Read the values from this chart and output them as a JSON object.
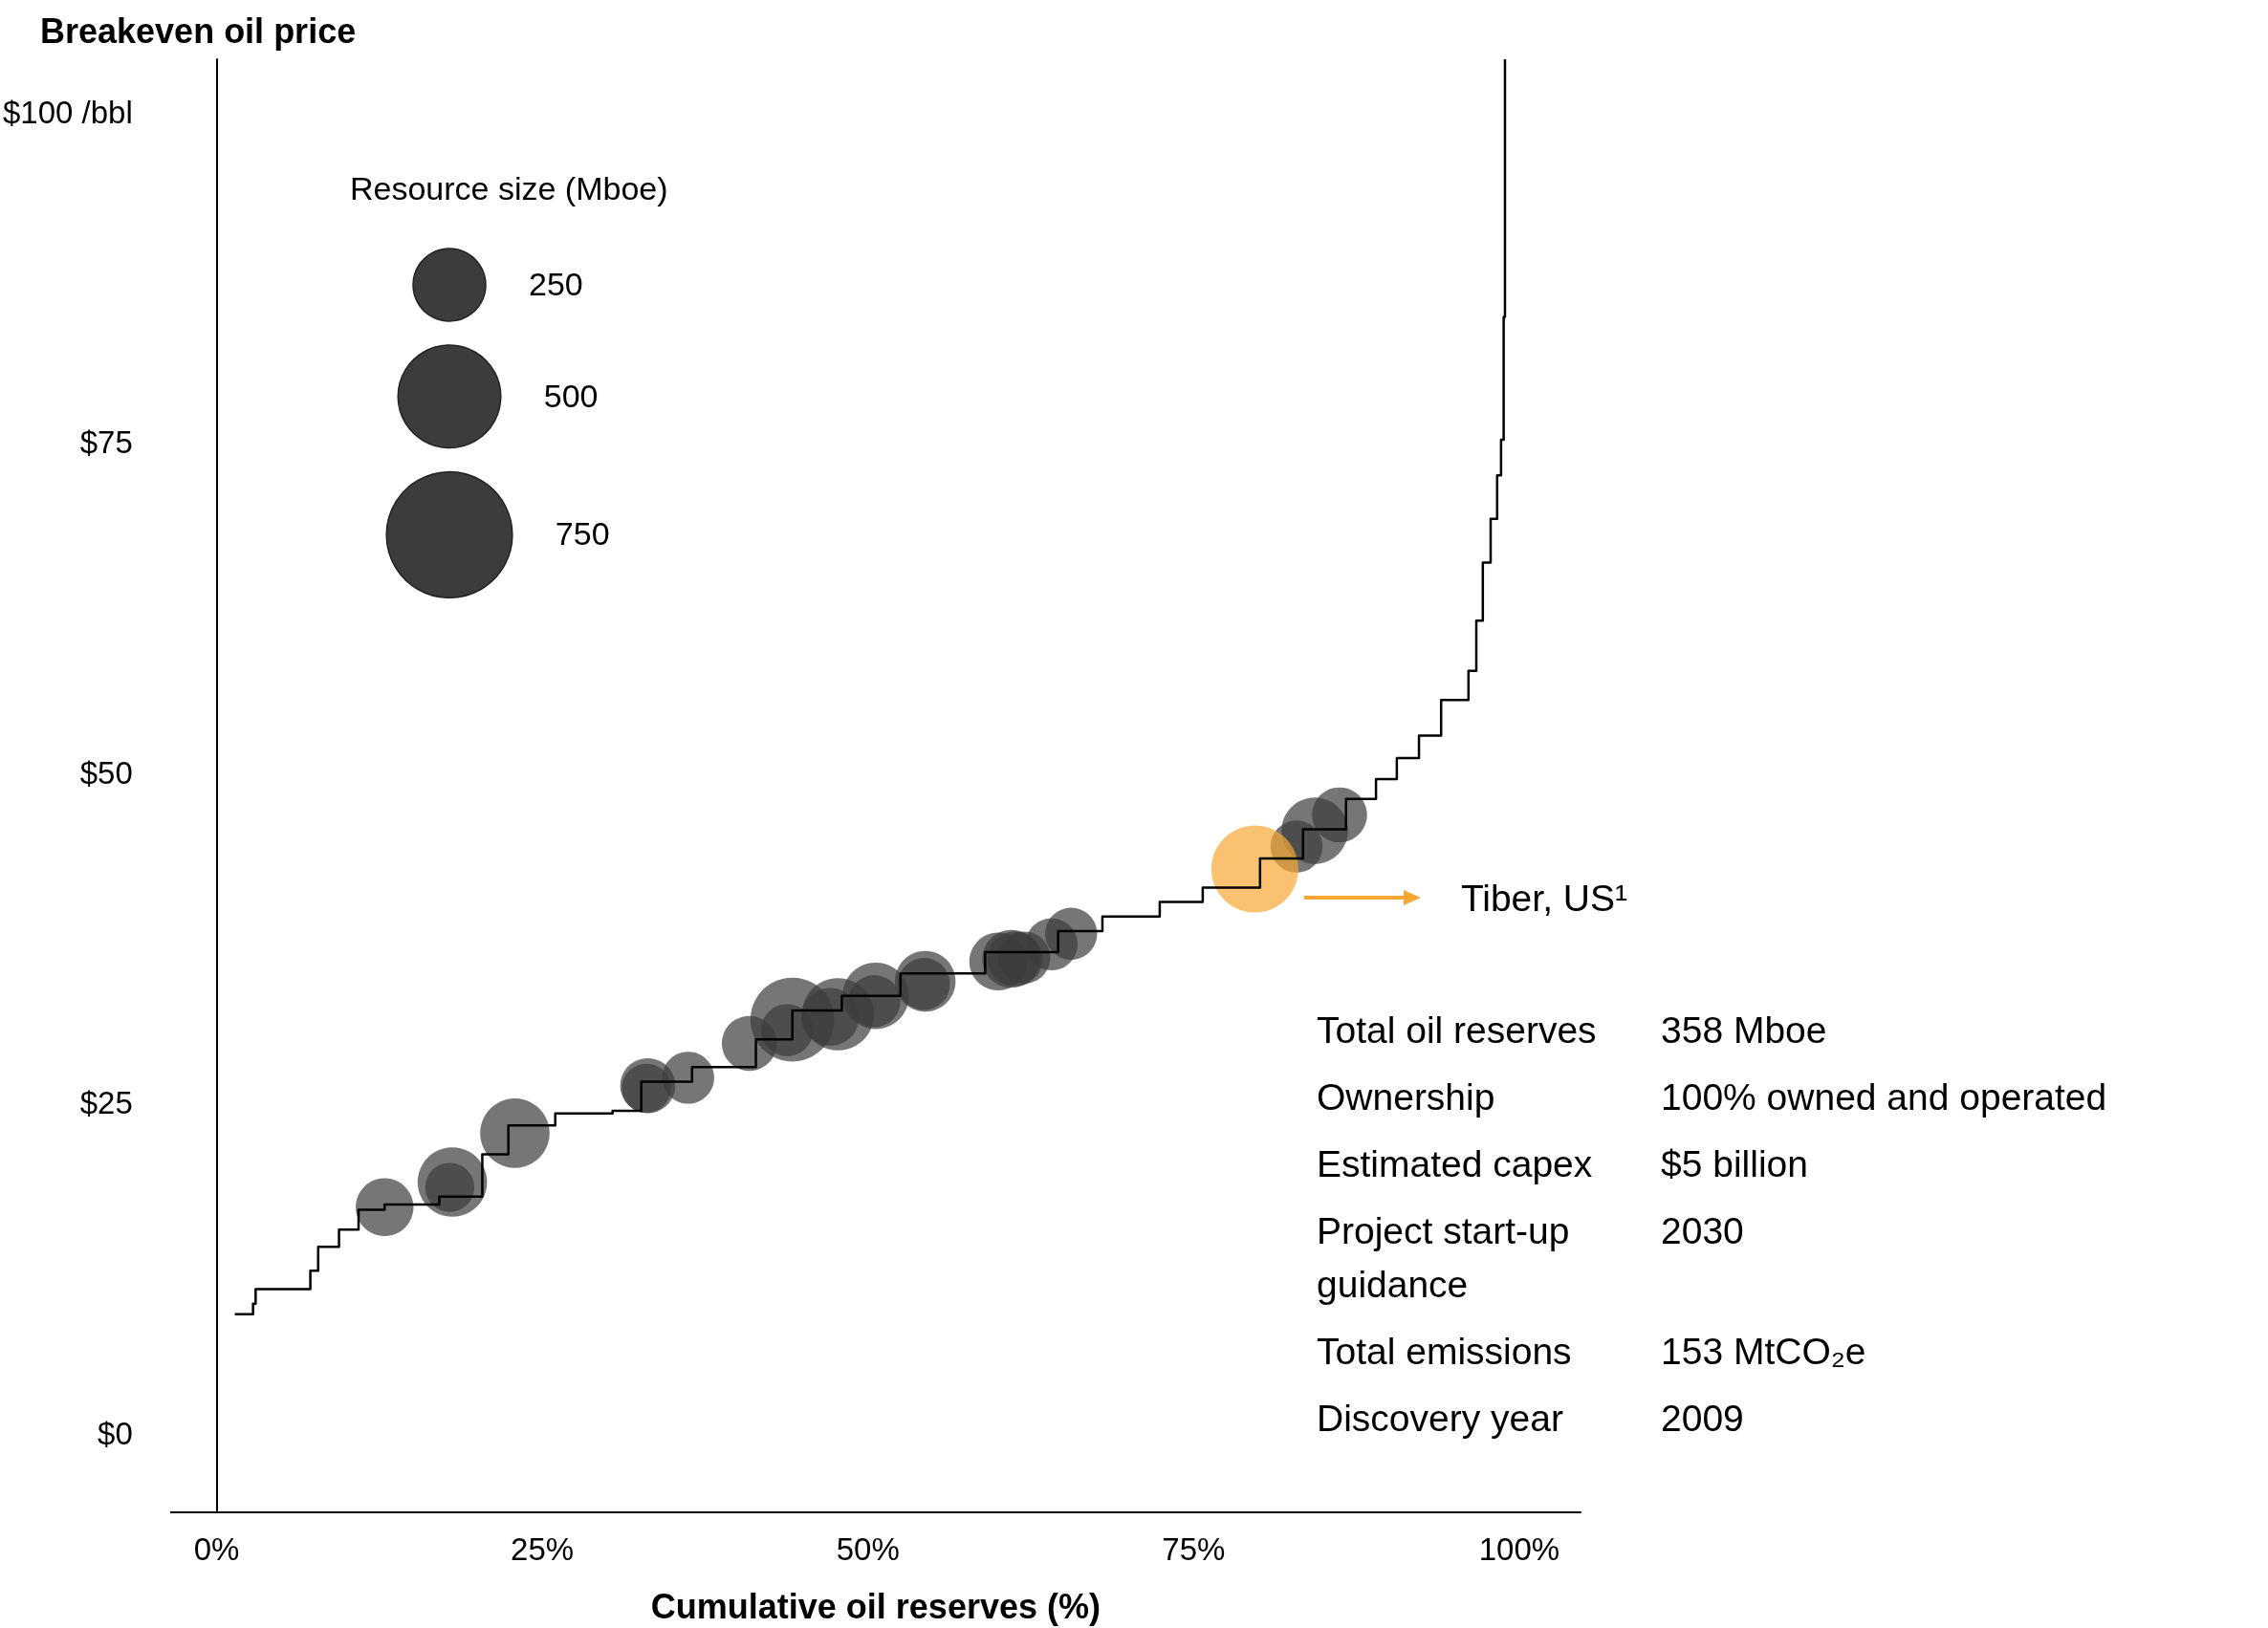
{
  "chart_data": {
    "type": "bubble",
    "ylabel": "Breakeven oil price",
    "xlabel": "Cumulative oil reserves (%)",
    "legend_title": "Resource size (Mboe)",
    "size_legend": [
      250,
      500,
      750
    ],
    "xlim": [
      -3.5,
      104.7
    ],
    "ylim": [
      -6,
      104
    ],
    "xticks": [
      {
        "value": 0,
        "label": "0%"
      },
      {
        "value": 25,
        "label": "25%"
      },
      {
        "value": 50,
        "label": "50%"
      },
      {
        "value": 75,
        "label": "75%"
      },
      {
        "value": 100,
        "label": "100%"
      }
    ],
    "yticks": [
      {
        "value": 0,
        "label": "$0"
      },
      {
        "value": 25,
        "label": "$25"
      },
      {
        "value": 50,
        "label": "$50"
      },
      {
        "value": 75,
        "label": "$75"
      },
      {
        "value": 100,
        "label": "$100 /bbl"
      }
    ],
    "series": [
      {
        "type": "step",
        "color": "#000000",
        "x": [
          1.4,
          2.8,
          3.0,
          6.1,
          7.2,
          7.8,
          9.4,
          10.9,
          12.9,
          16.0,
          17.1,
          20.4,
          22.4,
          26.0,
          30.4,
          32.6,
          36.5,
          41.4,
          44.2,
          48.0,
          52.5,
          59.0,
          64.6,
          68.0,
          72.4,
          75.7,
          80.1,
          83.4,
          86.7,
          89.0,
          90.6,
          92.3,
          94.0,
          96.1,
          96.7,
          97.2,
          97.8,
          98.3,
          98.6,
          98.8,
          98.9,
          98.9
        ],
        "values": [
          9.0,
          9.8,
          10.9,
          10.9,
          12.3,
          14.1,
          15.4,
          16.9,
          17.3,
          17.3,
          17.9,
          21.1,
          23.3,
          24.2,
          24.4,
          26.6,
          27.7,
          29.8,
          32.0,
          33.1,
          34.8,
          36.4,
          38.0,
          39.1,
          40.2,
          41.3,
          43.5,
          45.7,
          48.0,
          49.5,
          51.1,
          52.8,
          55.5,
          57.7,
          61.5,
          65.9,
          69.2,
          72.5,
          75.2,
          84.5,
          92.1,
          104
        ]
      },
      {
        "color": "#3c3c3c",
        "x": [
          12.9,
          18.1,
          17.9,
          22.9,
          33.1,
          33.0,
          36.2,
          40.9,
          44.2,
          43.8,
          47.7,
          47.1,
          50.6,
          50.5,
          54.4,
          54.3,
          60.0,
          61.0,
          61.3,
          62.0,
          64.1,
          65.6,
          82.9,
          84.3,
          86.2
        ],
        "values": [
          17.1,
          19.0,
          18.6,
          22.7,
          26.3,
          26.1,
          26.9,
          29.5,
          31.3,
          30.5,
          31.7,
          31.5,
          33.1,
          32.7,
          34.2,
          34.0,
          35.7,
          35.9,
          35.9,
          36.0,
          37.0,
          37.8,
          44.4,
          45.6,
          46.8
        ],
        "sizes": [
          158,
          228,
          114,
          228,
          143,
          114,
          128,
          143,
          333,
          128,
          247,
          158,
          209,
          128,
          174,
          128,
          158,
          158,
          143,
          128,
          128,
          128,
          128,
          209,
          143
        ]
      },
      {
        "name": "Tiber, US¹",
        "color": "#f7a733",
        "x": [
          79.7
        ],
        "values": [
          42.7
        ],
        "sizes": [
          358
        ]
      }
    ],
    "annotations": [
      "Total oil reserves",
      "358 Mboe",
      "Ownership",
      "100% owned and operated",
      "Estimated capex",
      "$5 billion",
      "Project start-up guidance",
      "2030",
      "Total emissions",
      "153 MtCO₂e",
      "Discovery year",
      "2009"
    ]
  }
}
